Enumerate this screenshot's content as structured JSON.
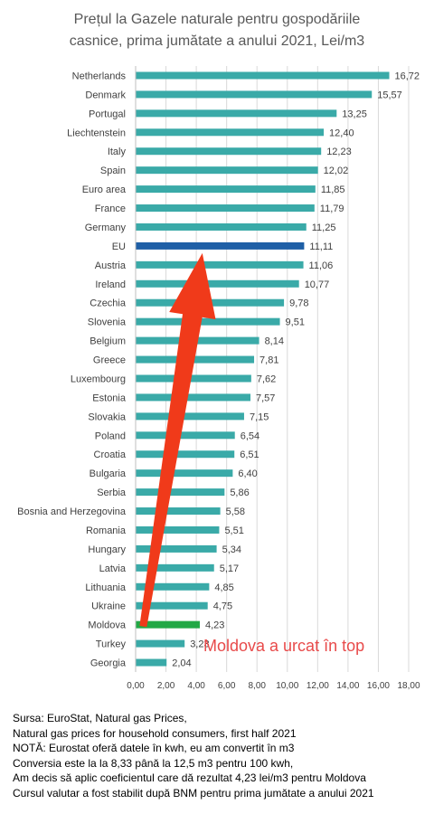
{
  "chart_data": {
    "type": "bar",
    "orientation": "horizontal",
    "title_lines": [
      "Prețul la Gazele naturale pentru gospodăriile",
      "casnice, prima jumătate a anului 2021, Lei/m3"
    ],
    "categories": [
      "Netherlands",
      "Denmark",
      "Portugal",
      "Liechtenstein",
      "Italy",
      "Spain",
      "Euro area",
      "France",
      "Germany",
      "EU",
      "Austria",
      "Ireland",
      "Czechia",
      "Slovenia",
      "Belgium",
      "Greece",
      "Luxembourg",
      "Estonia",
      "Slovakia",
      "Poland",
      "Croatia",
      "Bulgaria",
      "Serbia",
      "Bosnia and Herzegovina",
      "Romania",
      "Hungary",
      "Latvia",
      "Lithuania",
      "Ukraine",
      "Moldova",
      "Turkey",
      "Georgia"
    ],
    "values": [
      16.72,
      15.57,
      13.25,
      12.4,
      12.23,
      12.02,
      11.85,
      11.79,
      11.25,
      11.11,
      11.06,
      10.77,
      9.78,
      9.51,
      8.14,
      7.81,
      7.62,
      7.57,
      7.15,
      6.54,
      6.51,
      6.4,
      5.86,
      5.58,
      5.51,
      5.34,
      5.17,
      4.85,
      4.75,
      4.23,
      3.23,
      2.04
    ],
    "value_labels": [
      "16,72",
      "15,57",
      "13,25",
      "12,40",
      "12,23",
      "12,02",
      "11,85",
      "11,79",
      "11,25",
      "11,11",
      "11,06",
      "10,77",
      "9,78",
      "9,51",
      "8,14",
      "7,81",
      "7,62",
      "7,57",
      "7,15",
      "6,54",
      "6,51",
      "6,40",
      "5,86",
      "5,58",
      "5,51",
      "5,34",
      "5,17",
      "4,85",
      "4,75",
      "4,23",
      "3,23",
      "2,04"
    ],
    "xlim": [
      0,
      18
    ],
    "x_ticks": [
      0,
      2,
      4,
      6,
      8,
      10,
      12,
      14,
      16,
      18
    ],
    "x_tick_labels": [
      "0,00",
      "2,00",
      "4,00",
      "6,00",
      "8,00",
      "10,00",
      "12,00",
      "14,00",
      "16,00",
      "18,00"
    ],
    "grid": true,
    "colors": {
      "default": "#3aaaa8",
      "EU": "#1f5fa6",
      "Moldova": "#22a845",
      "arrow": "#f03a1a"
    },
    "annotation": "Moldova a urcat în top"
  },
  "footer": {
    "lines": [
      "Sursa: EuroStat, Natural gas Prices,",
      "Natural gas prices for household consumers, first half 2021",
      "NOTĂ: Eurostat oferă datele în kwh, eu am convertit în m3",
      "Conversia este la la 8,33  până la 12,5  m3 pentru 100  kwh,",
      "Am decis să aplic coeficientul care dă rezultat 4,23  lei/m3 pentru Moldova",
      "Cursul valutar a fost stabilit după BNM pentru prima jumătate a anului 2021"
    ]
  }
}
